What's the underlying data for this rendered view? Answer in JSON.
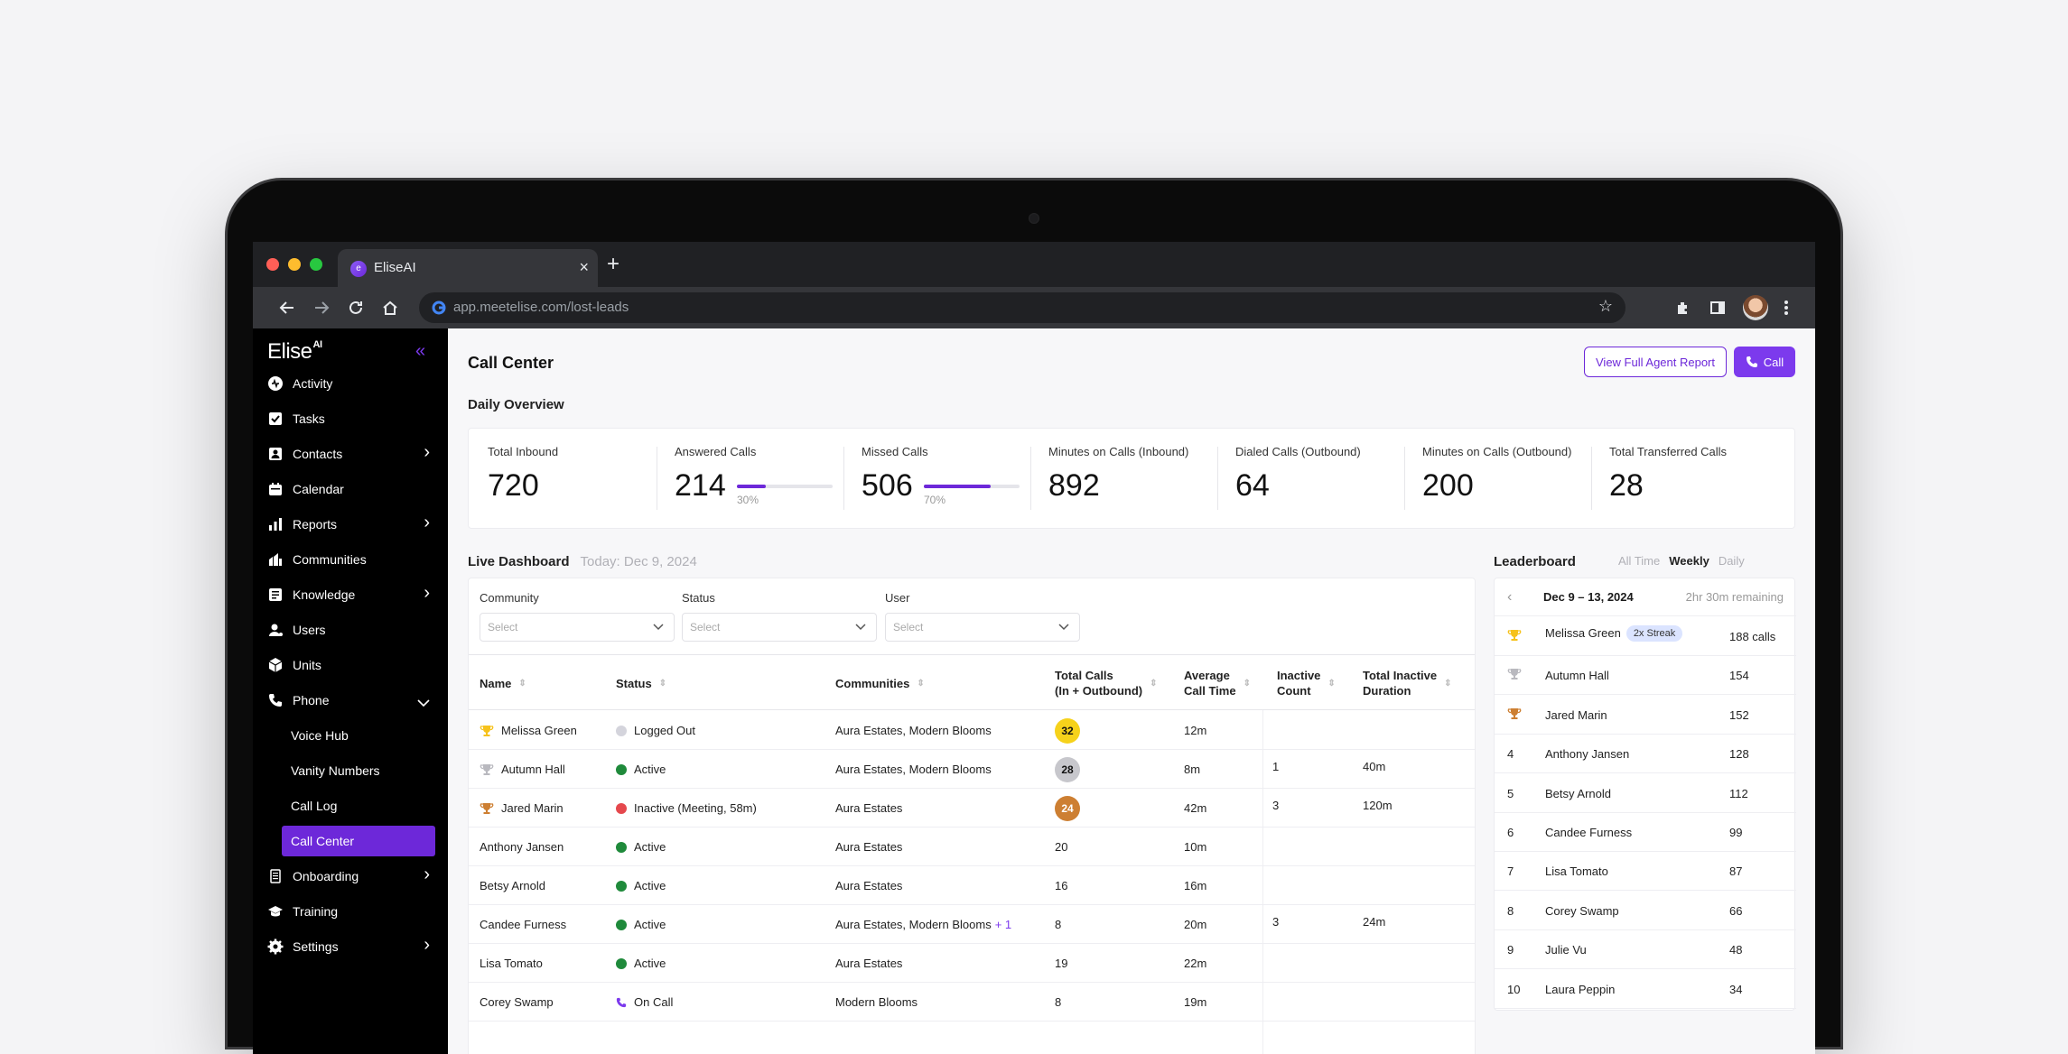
{
  "browser": {
    "tab_title": "EliseAI",
    "url": "app.meetelise.com/lost-leads"
  },
  "sidebar": {
    "logo": "Elise",
    "logo_sup": "AI",
    "items": [
      {
        "label": "Activity",
        "icon": "activity-icon"
      },
      {
        "label": "Tasks",
        "icon": "tasks-icon"
      },
      {
        "label": "Contacts",
        "icon": "contacts-icon",
        "chevron": true
      },
      {
        "label": "Calendar",
        "icon": "calendar-icon"
      },
      {
        "label": "Reports",
        "icon": "reports-icon",
        "chevron": true
      },
      {
        "label": "Communities",
        "icon": "communities-icon"
      },
      {
        "label": "Knowledge",
        "icon": "knowledge-icon",
        "chevron": true
      },
      {
        "label": "Users",
        "icon": "users-icon"
      },
      {
        "label": "Units",
        "icon": "units-icon"
      },
      {
        "label": "Phone",
        "icon": "phone-icon",
        "expanded": true
      },
      {
        "label": "Onboarding",
        "icon": "onboarding-icon",
        "chevron": true
      },
      {
        "label": "Training",
        "icon": "training-icon"
      },
      {
        "label": "Settings",
        "icon": "settings-icon",
        "chevron": true
      }
    ],
    "phone_sub": [
      "Voice Hub",
      "Vanity Numbers",
      "Call Log",
      "Call Center"
    ],
    "active_sub": "Call Center"
  },
  "header": {
    "title": "Call Center",
    "report_button": "View Full Agent Report",
    "call_button": "Call"
  },
  "overview": {
    "title": "Daily Overview",
    "stats": [
      {
        "label": "Total Inbound",
        "value": "720"
      },
      {
        "label": "Answered Calls",
        "value": "214",
        "pct_label": "30%",
        "pct": 0.3
      },
      {
        "label": "Missed Calls",
        "value": "506",
        "pct_label": "70%",
        "pct": 0.7
      },
      {
        "label": "Minutes on Calls (Inbound)",
        "value": "892"
      },
      {
        "label": "Dialed Calls (Outbound)",
        "value": "64"
      },
      {
        "label": "Minutes on Calls (Outbound)",
        "value": "200"
      },
      {
        "label": "Total Transferred Calls",
        "value": "28"
      }
    ]
  },
  "dashboard": {
    "title": "Live Dashboard",
    "date": "Today: Dec 9, 2024",
    "filters": [
      {
        "label": "Community",
        "placeholder": "Select"
      },
      {
        "label": "Status",
        "placeholder": "Select"
      },
      {
        "label": "User",
        "placeholder": "Select"
      }
    ],
    "columns": [
      "Name",
      "Status",
      "Communities",
      "Total Calls\n(In + Outbound)",
      "Average\nCall Time",
      "Inactive\nCount",
      "Total Inactive\nDuration"
    ],
    "rows": [
      {
        "trophy": "gold",
        "name": "Melissa Green",
        "status": "Logged Out",
        "status_color": "#d4d4dc",
        "communities": "Aura Estates, Modern Blooms",
        "more": "",
        "calls": "32",
        "badge": "#f6d21b",
        "badge_text": "#111",
        "avg": "12m",
        "inactive": "",
        "inactive_dur": ""
      },
      {
        "trophy": "silver",
        "name": "Autumn Hall",
        "status": "Active",
        "status_color": "#1f8a3b",
        "communities": "Aura Estates, Modern Blooms",
        "more": "",
        "calls": "28",
        "badge": "#c7c7cc",
        "badge_text": "#111",
        "avg": "8m",
        "inactive": "1",
        "inactive_dur": "40m"
      },
      {
        "trophy": "bronze",
        "name": "Jared Marin",
        "status": "Inactive (Meeting, 58m)",
        "status_color": "#e5484d",
        "communities": "Aura Estates",
        "more": "",
        "calls": "24",
        "badge": "#cd7f32",
        "badge_text": "#fff",
        "avg": "42m",
        "inactive": "3",
        "inactive_dur": "120m"
      },
      {
        "trophy": "",
        "name": "Anthony Jansen",
        "status": "Active",
        "status_color": "#1f8a3b",
        "communities": "Aura Estates",
        "more": "",
        "calls": "20",
        "badge": "",
        "avg": "10m",
        "inactive": "",
        "inactive_dur": ""
      },
      {
        "trophy": "",
        "name": "Betsy Arnold",
        "status": "Active",
        "status_color": "#1f8a3b",
        "communities": "Aura Estates",
        "more": "",
        "calls": "16",
        "badge": "",
        "avg": "16m",
        "inactive": "",
        "inactive_dur": ""
      },
      {
        "trophy": "",
        "name": "Candee Furness",
        "status": "Active",
        "status_color": "#1f8a3b",
        "communities": "Aura Estates, Modern Blooms",
        "more": "+ 1",
        "calls": "8",
        "badge": "",
        "avg": "20m",
        "inactive": "3",
        "inactive_dur": "24m"
      },
      {
        "trophy": "",
        "name": "Lisa Tomato",
        "status": "Active",
        "status_color": "#1f8a3b",
        "communities": "Aura Estates",
        "more": "",
        "calls": "19",
        "badge": "",
        "avg": "22m",
        "inactive": "",
        "inactive_dur": ""
      },
      {
        "trophy": "",
        "name": "Corey Swamp",
        "status": "On Call",
        "status_color": "phone",
        "communities": "Modern Blooms",
        "more": "",
        "calls": "8",
        "badge": "",
        "avg": "19m",
        "inactive": "",
        "inactive_dur": ""
      }
    ]
  },
  "leaderboard": {
    "title": "Leaderboard",
    "tabs": [
      "All Time",
      "Weekly",
      "Daily"
    ],
    "active_tab": "Weekly",
    "range": "Dec 9 – 13, 2024",
    "remaining": "2hr 30m remaining",
    "streak": "2x Streak",
    "rows": [
      {
        "rank": "gold",
        "name": "Melissa Green",
        "calls": "188 calls",
        "streak": true
      },
      {
        "rank": "silver",
        "name": "Autumn Hall",
        "calls": "154"
      },
      {
        "rank": "bronze",
        "name": "Jared Marin",
        "calls": "152"
      },
      {
        "rank": "4",
        "name": "Anthony Jansen",
        "calls": "128"
      },
      {
        "rank": "5",
        "name": "Betsy Arnold",
        "calls": "112"
      },
      {
        "rank": "6",
        "name": "Candee Furness",
        "calls": "99"
      },
      {
        "rank": "7",
        "name": "Lisa Tomato",
        "calls": "87"
      },
      {
        "rank": "8",
        "name": "Corey Swamp",
        "calls": "66"
      },
      {
        "rank": "9",
        "name": "Julie Vu",
        "calls": "48"
      },
      {
        "rank": "10",
        "name": "Laura Peppin",
        "calls": "34"
      }
    ]
  },
  "colors": {
    "accent": "#7c3aed",
    "accent_dark": "#6d28d9",
    "gold": "#f6c21b",
    "silver": "#b9b9bf",
    "bronze": "#cd7f32"
  }
}
